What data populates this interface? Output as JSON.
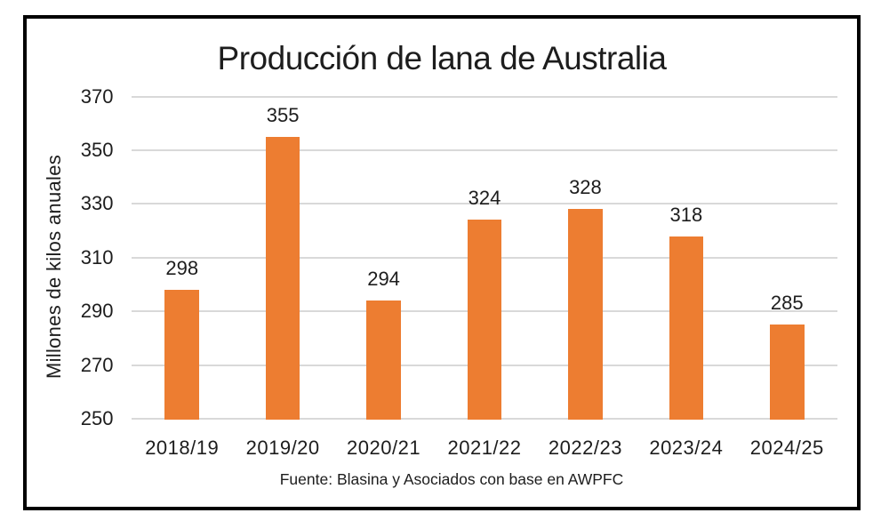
{
  "chart_data": {
    "type": "bar",
    "title": "Producción de lana de Australia",
    "categories": [
      "2018/19",
      "2019/20",
      "2020/21",
      "2021/22",
      "2022/23",
      "2023/24",
      "2024/25"
    ],
    "values": [
      298,
      355,
      294,
      324,
      328,
      318,
      285
    ],
    "xlabel": "",
    "ylabel": "Millones de kilos anuales",
    "yticks": [
      370,
      350,
      330,
      310,
      290,
      270,
      250
    ],
    "ylim": [
      250,
      370
    ],
    "grid": true,
    "legend": false,
    "source_note": "Fuente: Blasina y Asociados con base en AWPFC",
    "bar_color": "#ED7D31",
    "gridline_color": "#D9D9D9",
    "text_color": "#1D1D1D",
    "frame_color": "#000000"
  }
}
